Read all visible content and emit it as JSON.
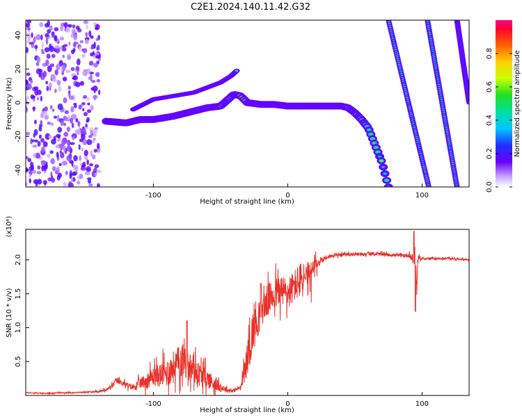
{
  "figure_title": "C2E1.2024.140.11.42.G32",
  "chart_data": [
    {
      "type": "heatmap",
      "id": "spectrogram",
      "xlabel": "Height of straight line (km)",
      "ylabel": "Frequency (Hz)",
      "xlim": [
        -195,
        135
      ],
      "ylim": [
        -50,
        49
      ],
      "xticks": [
        -100,
        0,
        100
      ],
      "yticks": [
        -40,
        -20,
        0,
        20,
        40
      ],
      "grid": false,
      "colormap": "rainbow",
      "colorbar": {
        "label": "Normalized spectral amplitude",
        "range": [
          0,
          1
        ],
        "ticks": [
          "0.0",
          "0.2",
          "0.4",
          "0.6",
          "0.8"
        ],
        "tick_values": [
          0,
          0.2,
          0.4,
          0.6,
          0.8
        ]
      },
      "ridges": [
        {
          "name": "main",
          "points": [
            [
              -135,
              -11
            ],
            [
              -120,
              -12
            ],
            [
              -110,
              -10
            ],
            [
              -100,
              -10
            ],
            [
              -85,
              -8
            ],
            [
              -70,
              -5
            ],
            [
              -60,
              -3
            ],
            [
              -50,
              -2
            ],
            [
              -40,
              5
            ],
            [
              -35,
              4
            ],
            [
              -30,
              0
            ],
            [
              -20,
              -1
            ],
            [
              -10,
              -1
            ],
            [
              0,
              -2
            ],
            [
              20,
              -2
            ],
            [
              40,
              -2
            ],
            [
              45,
              -3
            ],
            [
              50,
              -6
            ],
            [
              55,
              -10
            ],
            [
              60,
              -15
            ],
            [
              65,
              -25
            ],
            [
              70,
              -35
            ],
            [
              75,
              -50
            ]
          ]
        },
        {
          "name": "upper-branch",
          "points": [
            [
              -115,
              -4
            ],
            [
              -100,
              2
            ],
            [
              -85,
              4
            ],
            [
              -70,
              6
            ],
            [
              -60,
              9
            ],
            [
              -50,
              12
            ],
            [
              -42,
              16
            ],
            [
              -38,
              19
            ]
          ]
        },
        {
          "name": "line-1",
          "points": [
            [
              75,
              49
            ],
            [
              105,
              -50
            ]
          ]
        },
        {
          "name": "line-2",
          "points": [
            [
              104,
              49
            ],
            [
              126,
              -50
            ]
          ]
        },
        {
          "name": "line-3",
          "points": [
            [
              126,
              49
            ],
            [
              135,
              0
            ]
          ]
        }
      ]
    },
    {
      "type": "line",
      "id": "snr",
      "xlabel": "Height of straight line (km)",
      "ylabel": "SNR (10 * v/v)",
      "y_multiplier": "(x10⁴)",
      "xlim": [
        -195,
        135
      ],
      "ylim": [
        0,
        2.45
      ],
      "xticks": [
        -100,
        0,
        100
      ],
      "yticks": [
        0.5,
        1.0,
        1.5,
        2.0
      ],
      "ytick_labels": [
        "0.5",
        "1.0",
        "1.5",
        "2.0"
      ],
      "grid": false,
      "color": "#e8312a",
      "x": [
        -195,
        -180,
        -170,
        -160,
        -150,
        -140,
        -135,
        -130,
        -128,
        -125,
        -122,
        -120,
        -115,
        -110,
        -105,
        -100,
        -95,
        -90,
        -85,
        -80,
        -77,
        -75,
        -72,
        -70,
        -65,
        -60,
        -55,
        -50,
        -45,
        -40,
        -35,
        -30,
        -28,
        -25,
        -22,
        -20,
        -15,
        -10,
        -5,
        0,
        5,
        10,
        13,
        15,
        18,
        20,
        25,
        30,
        35,
        40,
        50,
        60,
        70,
        80,
        85,
        90,
        93,
        94,
        95,
        96,
        97,
        98,
        100,
        110,
        120,
        130,
        135
      ],
      "y": [
        0.04,
        0.03,
        0.04,
        0.04,
        0.05,
        0.06,
        0.08,
        0.15,
        0.22,
        0.2,
        0.18,
        0.15,
        0.12,
        0.18,
        0.22,
        0.28,
        0.3,
        0.33,
        0.42,
        0.5,
        0.58,
        0.45,
        0.4,
        0.38,
        0.3,
        0.25,
        0.18,
        0.12,
        0.08,
        0.07,
        0.12,
        0.55,
        0.75,
        1.05,
        1.15,
        1.25,
        1.4,
        1.5,
        1.55,
        1.5,
        1.62,
        1.7,
        1.75,
        1.68,
        1.8,
        1.9,
        2.0,
        2.05,
        2.06,
        2.08,
        2.08,
        2.09,
        2.08,
        2.07,
        2.06,
        2.07,
        2.02,
        1.95,
        2.2,
        1.55,
        2.05,
        2.0,
        2.02,
        2.02,
        2.02,
        2.01,
        2.0
      ],
      "noise": [
        0.01,
        0.01,
        0.01,
        0.01,
        0.01,
        0.02,
        0.03,
        0.05,
        0.05,
        0.05,
        0.05,
        0.05,
        0.06,
        0.1,
        0.14,
        0.18,
        0.22,
        0.26,
        0.3,
        0.32,
        0.35,
        0.3,
        0.28,
        0.25,
        0.22,
        0.18,
        0.14,
        0.08,
        0.04,
        0.03,
        0.04,
        0.3,
        0.35,
        0.45,
        0.35,
        0.3,
        0.3,
        0.3,
        0.3,
        0.3,
        0.3,
        0.35,
        0.35,
        0.35,
        0.25,
        0.15,
        0.06,
        0.04,
        0.03,
        0.03,
        0.03,
        0.03,
        0.03,
        0.03,
        0.03,
        0.04,
        0.08,
        0.15,
        0.25,
        0.2,
        0.08,
        0.04,
        0.02,
        0.02,
        0.02,
        0.02,
        0.02
      ],
      "peaks": [
        {
          "x": -75,
          "y": 1.1
        },
        {
          "x": -20,
          "y": 1.65
        },
        {
          "x": 13,
          "y": 1.73
        },
        {
          "x": 94,
          "y": 2.42
        },
        {
          "x": 95,
          "y": 1.24
        }
      ]
    }
  ]
}
